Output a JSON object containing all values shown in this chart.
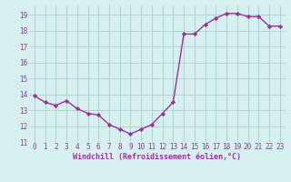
{
  "x": [
    0,
    1,
    2,
    3,
    4,
    5,
    6,
    7,
    8,
    9,
    10,
    11,
    12,
    13,
    14,
    15,
    16,
    17,
    18,
    19,
    20,
    21,
    22,
    23
  ],
  "y": [
    13.9,
    13.5,
    13.3,
    13.6,
    13.1,
    12.8,
    12.7,
    12.1,
    11.8,
    11.5,
    11.8,
    12.1,
    12.8,
    13.5,
    17.8,
    17.8,
    18.4,
    18.8,
    19.1,
    19.1,
    18.9,
    18.9,
    18.3,
    18.3
  ],
  "line_color": "#993399",
  "marker": "D",
  "marker_size": 2.2,
  "bg_color": "#d6f0f0",
  "grid_color": "#afd4d4",
  "xlabel": "Windchill (Refroidissement éolien,°C)",
  "ylim": [
    11,
    19.6
  ],
  "xlim": [
    -0.5,
    23.5
  ],
  "yticks": [
    11,
    12,
    13,
    14,
    15,
    16,
    17,
    18,
    19
  ],
  "xticks": [
    0,
    1,
    2,
    3,
    4,
    5,
    6,
    7,
    8,
    9,
    10,
    11,
    12,
    13,
    14,
    15,
    16,
    17,
    18,
    19,
    20,
    21,
    22,
    23
  ],
  "tick_fontsize": 5.5,
  "xlabel_fontsize": 6.0,
  "linewidth": 1.0
}
